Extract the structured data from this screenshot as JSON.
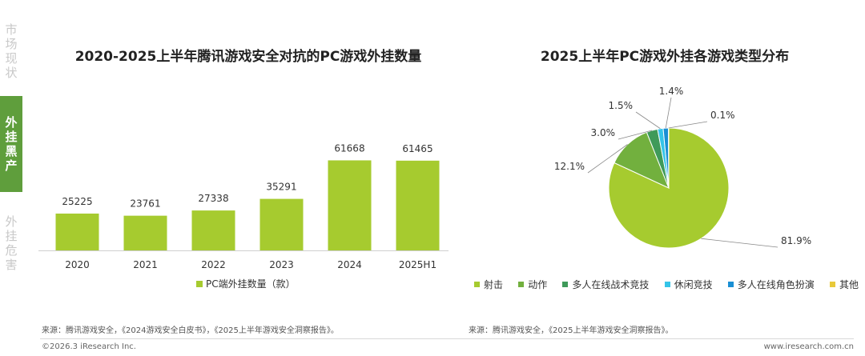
{
  "sidebar": {
    "top": [
      "市",
      "场",
      "现",
      "状"
    ],
    "active": [
      "外",
      "挂",
      "黑",
      "产"
    ],
    "bottom": [
      "外",
      "挂",
      "危",
      "害"
    ]
  },
  "left_title": "2020-2025上半年腾讯游戏安全对抗的PC游戏外挂数量",
  "right_title": "2025上半年PC游戏外挂各游戏类型分布",
  "left_source": "来源：腾讯游戏安全，《2024游戏安全白皮书》，《2025上半年游戏安全洞察报告》。",
  "right_source": "来源：腾讯游戏安全，《2025上半年游戏安全洞察报告》。",
  "footer_left": "©2026.3 iResearch Inc.",
  "footer_right": "www.iresearch.com.cn",
  "colors": {
    "bar": "#a6cb2f",
    "accent": "#5f9e3c"
  },
  "chart_data": [
    {
      "type": "bar",
      "title": "2020-2025上半年腾讯游戏安全对抗的PC游戏外挂数量",
      "categories": [
        "2020",
        "2021",
        "2022",
        "2023",
        "2024",
        "2025H1"
      ],
      "series": [
        {
          "name": "PC端外挂数量（款）",
          "values": [
            25225,
            23761,
            27338,
            35291,
            61668,
            61465
          ]
        }
      ],
      "legend": "PC端外挂数量（款）",
      "ylim": [
        0,
        80000
      ],
      "grid": false
    },
    {
      "type": "pie",
      "title": "2025上半年PC游戏外挂各游戏类型分布",
      "labels": [
        "射击",
        "动作",
        "多人在线战术竞技",
        "休闲竞技",
        "多人在线角色扮演",
        "其他"
      ],
      "values": [
        81.9,
        12.1,
        3.0,
        1.5,
        1.4,
        0.1
      ],
      "value_labels": [
        "81.9%",
        "12.1%",
        "3.0%",
        "1.5%",
        "1.4%",
        "0.1%"
      ],
      "colors": [
        "#a6cb2f",
        "#72b03e",
        "#3f9a5a",
        "#35c4e8",
        "#1a8fd4",
        "#e8c93a"
      ]
    }
  ]
}
